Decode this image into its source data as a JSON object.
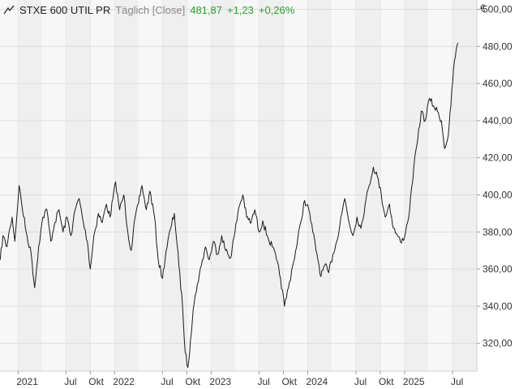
{
  "header": {
    "instrument": "STXE 600 UTIL PR",
    "mode": "Täglich [Close]",
    "last": "481,87",
    "change_abs": "+1,23",
    "change_pct": "+0,26%",
    "icon": "line-chart-icon"
  },
  "colors": {
    "positive": "#2e9e2e",
    "line": "#1a1a1a",
    "band_dark": "#efefef",
    "band_light": "#f7f7f7",
    "grid": "#dcdcdc"
  },
  "chart_data": {
    "type": "line",
    "currency": "€",
    "ylim": [
      305,
      505
    ],
    "xlim": [
      "2020-10-25",
      "2025-10-01"
    ],
    "y_ticks": [
      {
        "value": 500,
        "label": "500,00"
      },
      {
        "value": 480,
        "label": "480,00"
      },
      {
        "value": 460,
        "label": "460,00"
      },
      {
        "value": 440,
        "label": "440,00"
      },
      {
        "value": 420,
        "label": "420,00"
      },
      {
        "value": 400,
        "label": "400,00"
      },
      {
        "value": 380,
        "label": "380,00"
      },
      {
        "value": 360,
        "label": "360,00"
      },
      {
        "value": 340,
        "label": "340,00"
      },
      {
        "value": 320,
        "label": "320,00"
      }
    ],
    "x_ticks": [
      {
        "date": "2021-01-01",
        "label": "2021"
      },
      {
        "date": "2021-07-01",
        "label": "Jul"
      },
      {
        "date": "2021-10-01",
        "label": "Okt"
      },
      {
        "date": "2022-01-01",
        "label": "2022"
      },
      {
        "date": "2022-07-01",
        "label": "Jul"
      },
      {
        "date": "2022-10-01",
        "label": "Okt"
      },
      {
        "date": "2023-01-01",
        "label": "2023"
      },
      {
        "date": "2023-07-01",
        "label": "Jul"
      },
      {
        "date": "2023-10-01",
        "label": "Okt"
      },
      {
        "date": "2024-01-01",
        "label": "2024"
      },
      {
        "date": "2024-07-01",
        "label": "Jul"
      },
      {
        "date": "2024-10-01",
        "label": "Okt"
      },
      {
        "date": "2025-01-01",
        "label": "2025"
      },
      {
        "date": "2025-07-01",
        "label": "Jul"
      }
    ],
    "series": [
      {
        "points": [
          [
            "2020-10-26",
            365
          ],
          [
            "2020-11-05",
            378
          ],
          [
            "2020-11-20",
            372
          ],
          [
            "2020-12-01",
            382
          ],
          [
            "2020-12-10",
            388
          ],
          [
            "2020-12-20",
            375
          ],
          [
            "2021-01-05",
            405
          ],
          [
            "2021-01-15",
            395
          ],
          [
            "2021-02-01",
            380
          ],
          [
            "2021-02-20",
            368
          ],
          [
            "2021-03-05",
            350
          ],
          [
            "2021-03-20",
            372
          ],
          [
            "2021-04-05",
            388
          ],
          [
            "2021-04-20",
            392
          ],
          [
            "2021-05-05",
            375
          ],
          [
            "2021-05-20",
            385
          ],
          [
            "2021-06-05",
            392
          ],
          [
            "2021-06-20",
            380
          ],
          [
            "2021-07-05",
            388
          ],
          [
            "2021-07-20",
            378
          ],
          [
            "2021-08-05",
            392
          ],
          [
            "2021-08-20",
            398
          ],
          [
            "2021-09-05",
            385
          ],
          [
            "2021-09-20",
            375
          ],
          [
            "2021-10-01",
            360
          ],
          [
            "2021-10-15",
            378
          ],
          [
            "2021-11-01",
            390
          ],
          [
            "2021-11-15",
            385
          ],
          [
            "2021-12-01",
            395
          ],
          [
            "2021-12-15",
            388
          ],
          [
            "2022-01-05",
            407
          ],
          [
            "2022-01-20",
            392
          ],
          [
            "2022-02-05",
            400
          ],
          [
            "2022-02-20",
            380
          ],
          [
            "2022-03-05",
            370
          ],
          [
            "2022-03-20",
            388
          ],
          [
            "2022-04-01",
            395
          ],
          [
            "2022-04-15",
            405
          ],
          [
            "2022-05-01",
            392
          ],
          [
            "2022-05-15",
            402
          ],
          [
            "2022-06-01",
            388
          ],
          [
            "2022-06-15",
            365
          ],
          [
            "2022-07-01",
            355
          ],
          [
            "2022-07-15",
            370
          ],
          [
            "2022-08-01",
            382
          ],
          [
            "2022-08-15",
            390
          ],
          [
            "2022-09-01",
            362
          ],
          [
            "2022-09-15",
            340
          ],
          [
            "2022-09-25",
            315
          ],
          [
            "2022-10-05",
            307
          ],
          [
            "2022-10-15",
            322
          ],
          [
            "2022-10-25",
            338
          ],
          [
            "2022-11-10",
            352
          ],
          [
            "2022-11-25",
            362
          ],
          [
            "2022-12-10",
            372
          ],
          [
            "2022-12-25",
            365
          ],
          [
            "2023-01-10",
            375
          ],
          [
            "2023-01-25",
            368
          ],
          [
            "2023-02-10",
            378
          ],
          [
            "2023-02-25",
            370
          ],
          [
            "2023-03-15",
            366
          ],
          [
            "2023-04-01",
            380
          ],
          [
            "2023-04-15",
            393
          ],
          [
            "2023-05-01",
            400
          ],
          [
            "2023-05-15",
            388
          ],
          [
            "2023-06-01",
            385
          ],
          [
            "2023-06-15",
            392
          ],
          [
            "2023-07-01",
            380
          ],
          [
            "2023-07-15",
            386
          ],
          [
            "2023-08-01",
            378
          ],
          [
            "2023-08-20",
            372
          ],
          [
            "2023-09-05",
            365
          ],
          [
            "2023-09-20",
            355
          ],
          [
            "2023-10-05",
            340
          ],
          [
            "2023-10-20",
            350
          ],
          [
            "2023-11-05",
            362
          ],
          [
            "2023-11-20",
            372
          ],
          [
            "2023-12-05",
            385
          ],
          [
            "2023-12-20",
            397
          ],
          [
            "2024-01-05",
            392
          ],
          [
            "2024-01-20",
            380
          ],
          [
            "2024-02-05",
            368
          ],
          [
            "2024-02-20",
            356
          ],
          [
            "2024-03-05",
            362
          ],
          [
            "2024-03-20",
            358
          ],
          [
            "2024-04-05",
            368
          ],
          [
            "2024-04-20",
            375
          ],
          [
            "2024-05-05",
            388
          ],
          [
            "2024-05-20",
            398
          ],
          [
            "2024-06-05",
            385
          ],
          [
            "2024-06-20",
            378
          ],
          [
            "2024-07-05",
            388
          ],
          [
            "2024-07-20",
            382
          ],
          [
            "2024-08-05",
            395
          ],
          [
            "2024-08-20",
            405
          ],
          [
            "2024-09-05",
            415
          ],
          [
            "2024-09-20",
            410
          ],
          [
            "2024-10-05",
            400
          ],
          [
            "2024-10-20",
            388
          ],
          [
            "2024-11-05",
            395
          ],
          [
            "2024-11-20",
            382
          ],
          [
            "2024-12-05",
            378
          ],
          [
            "2024-12-20",
            374
          ],
          [
            "2025-01-05",
            380
          ],
          [
            "2025-01-20",
            392
          ],
          [
            "2025-02-05",
            415
          ],
          [
            "2025-02-20",
            430
          ],
          [
            "2025-03-05",
            445
          ],
          [
            "2025-03-20",
            440
          ],
          [
            "2025-04-05",
            452
          ],
          [
            "2025-04-20",
            448
          ],
          [
            "2025-05-05",
            445
          ],
          [
            "2025-05-20",
            440
          ],
          [
            "2025-06-01",
            425
          ],
          [
            "2025-06-15",
            432
          ],
          [
            "2025-06-25",
            448
          ],
          [
            "2025-07-05",
            468
          ],
          [
            "2025-07-15",
            478
          ],
          [
            "2025-07-22",
            481.87
          ]
        ]
      }
    ]
  }
}
